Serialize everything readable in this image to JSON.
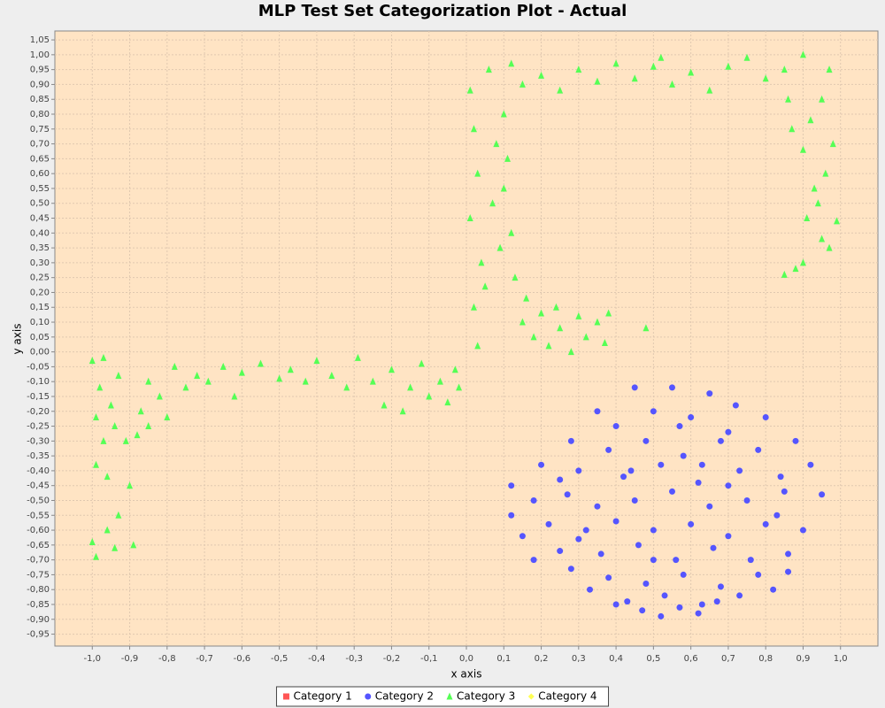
{
  "chart_data": {
    "type": "scatter",
    "title": "MLP Test Set Categorization Plot - Actual",
    "x_label": "x axis",
    "y_label": "y axis",
    "xlim": [
      -1.1,
      1.1
    ],
    "ylim": [
      -0.99,
      1.08
    ],
    "grid": true,
    "legend": "bottom",
    "xticks": [
      {
        "value": -1.0,
        "label": "-1,0"
      },
      {
        "value": -0.9,
        "label": "-0,9"
      },
      {
        "value": -0.8,
        "label": "-0,8"
      },
      {
        "value": -0.7,
        "label": "-0,7"
      },
      {
        "value": -0.6,
        "label": "-0,6"
      },
      {
        "value": -0.5,
        "label": "-0,5"
      },
      {
        "value": -0.4,
        "label": "-0,4"
      },
      {
        "value": -0.3,
        "label": "-0,3"
      },
      {
        "value": -0.2,
        "label": "-0,2"
      },
      {
        "value": -0.1,
        "label": "-0,1"
      },
      {
        "value": 0,
        "label": "0,0"
      },
      {
        "value": 0.1,
        "label": "0,1"
      },
      {
        "value": 0.2,
        "label": "0,2"
      },
      {
        "value": 0.3,
        "label": "0,3"
      },
      {
        "value": 0.4,
        "label": "0,4"
      },
      {
        "value": 0.5,
        "label": "0,5"
      },
      {
        "value": 0.6,
        "label": "0,6"
      },
      {
        "value": 0.7,
        "label": "0,7"
      },
      {
        "value": 0.8,
        "label": "0,8"
      },
      {
        "value": 0.9,
        "label": "0,9"
      },
      {
        "value": 1.0,
        "label": "1,0"
      }
    ],
    "yticks": [
      {
        "value": -0.95,
        "label": "-0,95"
      },
      {
        "value": -0.9,
        "label": "-0,90"
      },
      {
        "value": -0.85,
        "label": "-0,85"
      },
      {
        "value": -0.8,
        "label": "-0,80"
      },
      {
        "value": -0.75,
        "label": "-0,75"
      },
      {
        "value": -0.7,
        "label": "-0,70"
      },
      {
        "value": -0.65,
        "label": "-0,65"
      },
      {
        "value": -0.6,
        "label": "-0,60"
      },
      {
        "value": -0.55,
        "label": "-0,55"
      },
      {
        "value": -0.5,
        "label": "-0,50"
      },
      {
        "value": -0.45,
        "label": "-0,45"
      },
      {
        "value": -0.4,
        "label": "-0,40"
      },
      {
        "value": -0.35,
        "label": "-0,35"
      },
      {
        "value": -0.3,
        "label": "-0,30"
      },
      {
        "value": -0.25,
        "label": "-0,25"
      },
      {
        "value": -0.2,
        "label": "-0,20"
      },
      {
        "value": -0.15,
        "label": "-0,15"
      },
      {
        "value": -0.1,
        "label": "-0,10"
      },
      {
        "value": -0.05,
        "label": "-0,05"
      },
      {
        "value": 0,
        "label": "0,00"
      },
      {
        "value": 0.05,
        "label": "0,05"
      },
      {
        "value": 0.1,
        "label": "0,10"
      },
      {
        "value": 0.15,
        "label": "0,15"
      },
      {
        "value": 0.2,
        "label": "0,20"
      },
      {
        "value": 0.25,
        "label": "0,25"
      },
      {
        "value": 0.3,
        "label": "0,30"
      },
      {
        "value": 0.35,
        "label": "0,35"
      },
      {
        "value": 0.4,
        "label": "0,40"
      },
      {
        "value": 0.45,
        "label": "0,45"
      },
      {
        "value": 0.5,
        "label": "0,50"
      },
      {
        "value": 0.55,
        "label": "0,55"
      },
      {
        "value": 0.6,
        "label": "0,60"
      },
      {
        "value": 0.65,
        "label": "0,65"
      },
      {
        "value": 0.7,
        "label": "0,70"
      },
      {
        "value": 0.75,
        "label": "0,75"
      },
      {
        "value": 0.8,
        "label": "0,80"
      },
      {
        "value": 0.85,
        "label": "0,85"
      },
      {
        "value": 0.9,
        "label": "0,90"
      },
      {
        "value": 0.95,
        "label": "0,95"
      },
      {
        "value": 1.0,
        "label": "1,00"
      },
      {
        "value": 1.05,
        "label": "1,05"
      }
    ],
    "series": [
      {
        "name": "Category 1",
        "color": "#ff5555",
        "shape": "square",
        "x": [],
        "y": []
      },
      {
        "name": "Category 2",
        "color": "#5555ff",
        "shape": "circle",
        "x": [
          0.45,
          0.55,
          0.65,
          0.72,
          0.35,
          0.4,
          0.5,
          0.6,
          0.7,
          0.8,
          0.28,
          0.38,
          0.48,
          0.58,
          0.68,
          0.78,
          0.88,
          0.2,
          0.3,
          0.42,
          0.52,
          0.62,
          0.73,
          0.84,
          0.92,
          0.12,
          0.18,
          0.27,
          0.35,
          0.45,
          0.55,
          0.65,
          0.75,
          0.85,
          0.95,
          0.12,
          0.22,
          0.32,
          0.4,
          0.5,
          0.6,
          0.7,
          0.8,
          0.9,
          0.15,
          0.25,
          0.36,
          0.46,
          0.56,
          0.66,
          0.76,
          0.86,
          0.18,
          0.28,
          0.38,
          0.48,
          0.58,
          0.68,
          0.78,
          0.86,
          0.33,
          0.43,
          0.53,
          0.63,
          0.73,
          0.82,
          0.4,
          0.47,
          0.52,
          0.57,
          0.62,
          0.67,
          0.57,
          0.44,
          0.63,
          0.3,
          0.7,
          0.5,
          0.83,
          0.25
        ],
        "y": [
          -0.12,
          -0.12,
          -0.14,
          -0.18,
          -0.2,
          -0.25,
          -0.2,
          -0.22,
          -0.27,
          -0.22,
          -0.3,
          -0.33,
          -0.3,
          -0.35,
          -0.3,
          -0.33,
          -0.3,
          -0.38,
          -0.4,
          -0.42,
          -0.38,
          -0.44,
          -0.4,
          -0.42,
          -0.38,
          -0.45,
          -0.5,
          -0.48,
          -0.52,
          -0.5,
          -0.47,
          -0.52,
          -0.5,
          -0.47,
          -0.48,
          -0.55,
          -0.58,
          -0.6,
          -0.57,
          -0.6,
          -0.58,
          -0.62,
          -0.58,
          -0.6,
          -0.62,
          -0.67,
          -0.68,
          -0.65,
          -0.7,
          -0.66,
          -0.7,
          -0.68,
          -0.7,
          -0.73,
          -0.76,
          -0.78,
          -0.75,
          -0.79,
          -0.75,
          -0.74,
          -0.8,
          -0.84,
          -0.82,
          -0.85,
          -0.82,
          -0.8,
          -0.85,
          -0.87,
          -0.89,
          -0.86,
          -0.88,
          -0.84,
          -0.25,
          -0.4,
          -0.38,
          -0.63,
          -0.45,
          -0.7,
          -0.55,
          -0.43
        ]
      },
      {
        "name": "Category 3",
        "color": "#55ff55",
        "shape": "triangle",
        "x": [
          -1.0,
          -0.98,
          -0.99,
          -0.97,
          -0.99,
          -0.96,
          -1.0,
          -0.99,
          -0.96,
          -0.94,
          -0.93,
          -0.9,
          -0.89,
          -0.91,
          -0.88,
          -0.95,
          -0.97,
          -0.93,
          -0.87,
          -0.94,
          -0.85,
          -0.82,
          -0.8,
          -0.78,
          -0.75,
          -0.72,
          -0.69,
          -0.65,
          -0.6,
          -0.55,
          -0.5,
          -0.47,
          -0.43,
          -0.4,
          -0.36,
          -0.32,
          -0.29,
          -0.25,
          -0.22,
          -0.2,
          -0.17,
          -0.15,
          -0.12,
          -0.1,
          -0.07,
          -0.05,
          -0.03,
          -0.02,
          -0.62,
          -0.85,
          0.01,
          0.02,
          0.03,
          0.01,
          0.04,
          0.02,
          0.03,
          0.06,
          0.08,
          0.07,
          0.09,
          0.05,
          0.1,
          0.12,
          0.11,
          0.1,
          0.13,
          0.15,
          0.18,
          0.2,
          0.22,
          0.25,
          0.28,
          0.3,
          0.32,
          0.35,
          0.37,
          0.38,
          0.48,
          0.16,
          0.24,
          0.12,
          0.15,
          0.2,
          0.25,
          0.3,
          0.35,
          0.4,
          0.45,
          0.5,
          0.55,
          0.6,
          0.65,
          0.7,
          0.75,
          0.8,
          0.85,
          0.9,
          0.52,
          0.97,
          0.95,
          0.92,
          0.98,
          0.9,
          0.96,
          0.93,
          0.99,
          0.91,
          0.95,
          0.97,
          0.9,
          0.85,
          0.88,
          0.87,
          0.94,
          0.86
        ],
        "y": [
          -0.03,
          -0.12,
          -0.22,
          -0.3,
          -0.38,
          -0.42,
          -0.64,
          -0.69,
          -0.6,
          -0.66,
          -0.55,
          -0.45,
          -0.65,
          -0.3,
          -0.28,
          -0.18,
          -0.02,
          -0.08,
          -0.2,
          -0.25,
          -0.1,
          -0.15,
          -0.22,
          -0.05,
          -0.12,
          -0.08,
          -0.1,
          -0.05,
          -0.07,
          -0.04,
          -0.09,
          -0.06,
          -0.1,
          -0.03,
          -0.08,
          -0.12,
          -0.02,
          -0.1,
          -0.18,
          -0.06,
          -0.2,
          -0.12,
          -0.04,
          -0.15,
          -0.1,
          -0.17,
          -0.06,
          -0.12,
          -0.15,
          -0.25,
          0.88,
          0.75,
          0.6,
          0.45,
          0.3,
          0.15,
          0.02,
          0.95,
          0.7,
          0.5,
          0.35,
          0.22,
          0.8,
          0.4,
          0.65,
          0.55,
          0.25,
          0.1,
          0.05,
          0.13,
          0.02,
          0.08,
          0.0,
          0.12,
          0.05,
          0.1,
          0.03,
          0.13,
          0.08,
          0.18,
          0.15,
          0.97,
          0.9,
          0.93,
          0.88,
          0.95,
          0.91,
          0.97,
          0.92,
          0.96,
          0.9,
          0.94,
          0.88,
          0.96,
          0.99,
          0.92,
          0.95,
          1.0,
          0.99,
          0.95,
          0.85,
          0.78,
          0.7,
          0.68,
          0.6,
          0.55,
          0.44,
          0.45,
          0.38,
          0.35,
          0.3,
          0.26,
          0.28,
          0.75,
          0.5,
          0.85
        ]
      },
      {
        "name": "Category 4",
        "color": "#ffff55",
        "shape": "diamond",
        "x": [],
        "y": []
      }
    ]
  }
}
